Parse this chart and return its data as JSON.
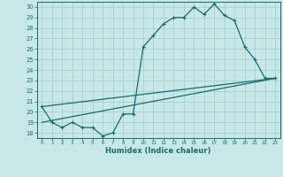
{
  "xlabel": "Humidex (Indice chaleur)",
  "bg_color": "#c8e8e8",
  "line_color": "#1a6b6b",
  "grid_color": "#a0cccc",
  "xlim": [
    -0.5,
    23.5
  ],
  "ylim": [
    17.5,
    30.5
  ],
  "yticks": [
    18,
    19,
    20,
    21,
    22,
    23,
    24,
    25,
    26,
    27,
    28,
    29,
    30
  ],
  "xticks": [
    0,
    1,
    2,
    3,
    4,
    5,
    6,
    7,
    8,
    9,
    10,
    11,
    12,
    13,
    14,
    15,
    16,
    17,
    18,
    19,
    20,
    21,
    22,
    23
  ],
  "line1_x": [
    0,
    1,
    2,
    3,
    4,
    5,
    6,
    7,
    8,
    9,
    10,
    11,
    12,
    13,
    14,
    15,
    16,
    17,
    18,
    19,
    20,
    21,
    22,
    23
  ],
  "line1_y": [
    20.5,
    19.0,
    18.5,
    19.0,
    18.5,
    18.5,
    17.7,
    18.0,
    19.8,
    19.8,
    26.2,
    27.3,
    28.4,
    29.0,
    29.0,
    30.0,
    29.3,
    30.3,
    29.2,
    28.7,
    26.2,
    25.0,
    23.2,
    23.2
  ],
  "line2_x": [
    0,
    23
  ],
  "line2_y": [
    19.0,
    23.2
  ],
  "line3_x": [
    0,
    23
  ],
  "line3_y": [
    20.5,
    23.2
  ]
}
